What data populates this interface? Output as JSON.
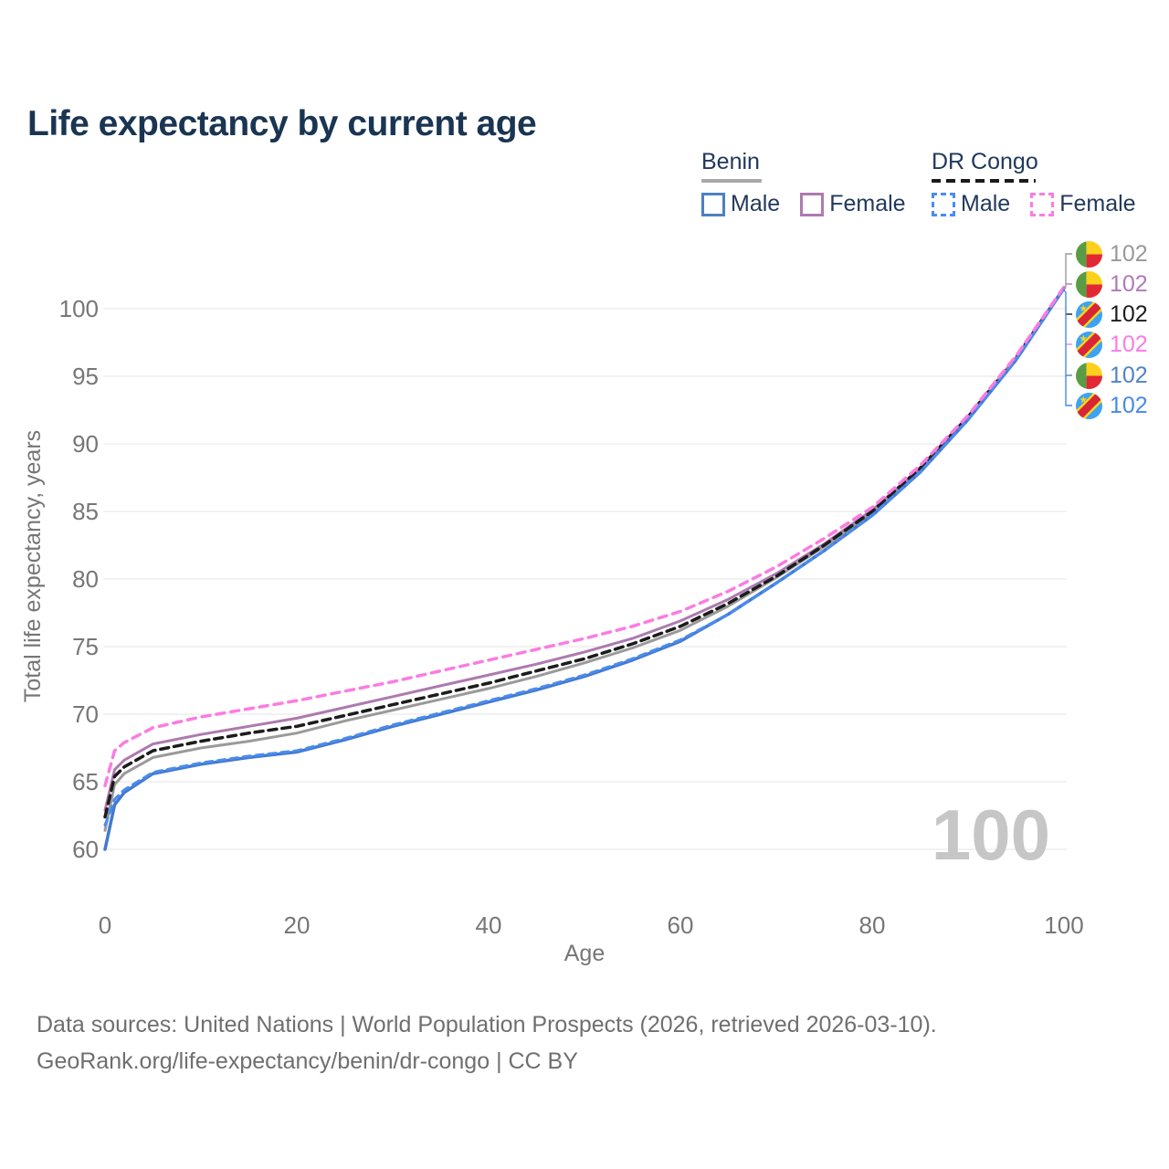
{
  "title": "Life expectancy by current age",
  "watermark": "100",
  "legend": {
    "groups": [
      {
        "label": "Benin",
        "line_style": "solid",
        "line_color": "#a8a8a8",
        "items": [
          {
            "label": "Male",
            "color": "#4d80c0",
            "style": "solid"
          },
          {
            "label": "Female",
            "color": "#ad7ab0",
            "style": "solid"
          }
        ]
      },
      {
        "label": "DR Congo",
        "line_style": "dashed",
        "line_color": "#1a1a1a",
        "items": [
          {
            "label": "Male",
            "color": "#4a8cee",
            "style": "dashed"
          },
          {
            "label": "Female",
            "color": "#fb7ce1",
            "style": "dashed"
          }
        ]
      }
    ]
  },
  "chart_data": {
    "type": "line",
    "title": "Life expectancy by current age",
    "xlabel": "Age",
    "ylabel": "Total life expectancy, years",
    "xlim": [
      0,
      100
    ],
    "ylim": [
      60,
      100
    ],
    "x_ticks": [
      0,
      20,
      40,
      60,
      80,
      100
    ],
    "y_ticks": [
      60,
      65,
      70,
      75,
      80,
      85,
      90,
      95,
      100
    ],
    "grid": "horizontal",
    "legend_position": "top-right",
    "x": [
      0,
      1,
      2,
      5,
      10,
      15,
      20,
      25,
      30,
      35,
      40,
      45,
      50,
      55,
      60,
      65,
      70,
      75,
      80,
      85,
      90,
      95,
      100
    ],
    "series": [
      {
        "id": "benin-total",
        "name": "Benin — Total",
        "country": "Benin",
        "sex": "Total",
        "color": "#9a9a9a",
        "dash": null,
        "width": 3,
        "end_label": "102",
        "values": [
          61.4,
          64.8,
          65.6,
          66.8,
          67.5,
          68.0,
          68.6,
          69.5,
          70.3,
          71.1,
          71.9,
          72.8,
          73.8,
          74.9,
          76.2,
          78.0,
          80.1,
          82.4,
          84.9,
          88.1,
          91.9,
          96.3,
          101.5
        ]
      },
      {
        "id": "benin-female",
        "name": "Benin — Female",
        "country": "Benin",
        "sex": "Female",
        "color": "#ad7ab0",
        "dash": null,
        "width": 3,
        "end_label": "102",
        "values": [
          62.9,
          65.9,
          66.6,
          67.8,
          68.5,
          69.1,
          69.7,
          70.5,
          71.3,
          72.1,
          72.9,
          73.7,
          74.6,
          75.6,
          76.9,
          78.5,
          80.4,
          82.6,
          85.1,
          88.2,
          92.0,
          96.4,
          101.5
        ]
      },
      {
        "id": "dr-congo-total",
        "name": "DR Congo — Total",
        "country": "DR Congo",
        "sex": "Total",
        "color": "#1c1c1c",
        "dash": "9 6",
        "width": 3.5,
        "end_label": "102",
        "values": [
          62.4,
          65.4,
          66.1,
          67.3,
          68.0,
          68.6,
          69.1,
          69.9,
          70.7,
          71.5,
          72.3,
          73.2,
          74.1,
          75.2,
          76.5,
          78.2,
          80.2,
          82.5,
          85.0,
          88.2,
          92.0,
          96.4,
          101.5
        ]
      },
      {
        "id": "benin-male",
        "name": "Benin — Male",
        "country": "Benin",
        "sex": "Male",
        "color": "#4379d0",
        "dash": null,
        "width": 3.5,
        "end_label": "102",
        "values": [
          60.0,
          63.3,
          64.2,
          65.6,
          66.3,
          66.8,
          67.2,
          68.1,
          69.1,
          70.0,
          70.9,
          71.8,
          72.8,
          74.0,
          75.4,
          77.4,
          79.7,
          82.1,
          84.7,
          87.9,
          91.8,
          96.2,
          101.5
        ]
      },
      {
        "id": "dr-congo-male",
        "name": "DR Congo — Male",
        "country": "DR Congo",
        "sex": "Male",
        "color": "#4a8cee",
        "dash": "8 6",
        "width": 3,
        "end_label": "102",
        "values": [
          61.8,
          63.7,
          64.4,
          65.7,
          66.4,
          66.9,
          67.3,
          68.2,
          69.2,
          70.1,
          71.0,
          71.9,
          72.9,
          74.1,
          75.5,
          77.4,
          79.7,
          82.1,
          84.7,
          87.9,
          91.8,
          96.2,
          101.5
        ]
      },
      {
        "id": "dr-congo-female",
        "name": "DR Congo — Female",
        "country": "DR Congo",
        "sex": "Female",
        "color": "#fb7ce1",
        "dash": "9 7",
        "width": 3.5,
        "end_label": "102",
        "values": [
          64.7,
          67.3,
          67.9,
          69.0,
          69.8,
          70.4,
          71.0,
          71.7,
          72.4,
          73.2,
          74.0,
          74.8,
          75.6,
          76.5,
          77.6,
          79.1,
          80.9,
          83.0,
          85.3,
          88.4,
          92.1,
          96.5,
          101.6
        ]
      }
    ]
  },
  "end_labels": [
    {
      "value": "102",
      "flag": "benin-flag-icon",
      "color": "#999999",
      "series": "Benin — Total"
    },
    {
      "value": "102",
      "flag": "benin-flag-icon",
      "color": "#b07ab8",
      "series": "Benin — Female"
    },
    {
      "value": "102",
      "flag": "dr-congo-flag-icon",
      "color": "#1c1c1c",
      "series": "DR Congo — Total"
    },
    {
      "value": "102",
      "flag": "dr-congo-flag-icon",
      "color": "#fd7ae8",
      "series": "DR Congo — Female"
    },
    {
      "value": "102",
      "flag": "benin-flag-icon",
      "color": "#5083c6",
      "series": "Benin — Male"
    },
    {
      "value": "102",
      "flag": "dr-congo-flag-icon",
      "color": "#4689ec",
      "series": "DR Congo — Male"
    }
  ],
  "footer": {
    "line1": "Data sources: United Nations | World Population Prospects (2026, retrieved 2026-03-10).",
    "line2": "GeoRank.org/life-expectancy/benin/dr-congo | CC BY"
  }
}
